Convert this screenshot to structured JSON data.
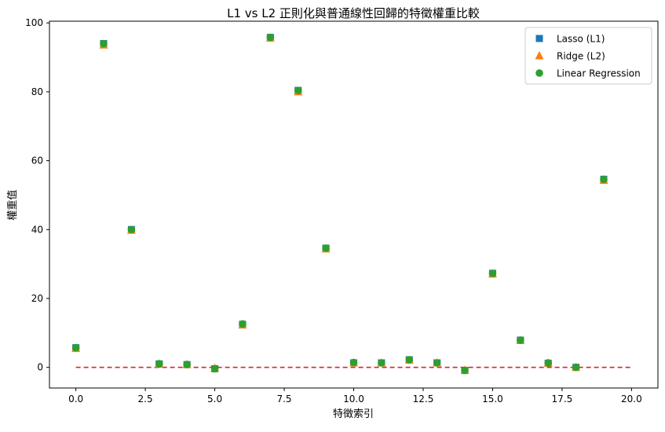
{
  "chart_data": {
    "type": "scatter",
    "title": "L1 vs L2 正則化與普通線性回歸的特徵權重比較",
    "xlabel": "特徵索引",
    "ylabel": "權重值",
    "xlim": [
      -0.95,
      20.95
    ],
    "ylim": [
      -6.0,
      100.5
    ],
    "xticks": [
      0.0,
      2.5,
      5.0,
      7.5,
      10.0,
      12.5,
      15.0,
      17.5,
      20.0
    ],
    "xtick_labels": [
      "0.0",
      "2.5",
      "5.0",
      "7.5",
      "10.0",
      "12.5",
      "15.0",
      "17.5",
      "20.0"
    ],
    "yticks": [
      0,
      20,
      40,
      60,
      80,
      100
    ],
    "ytick_labels": [
      "0",
      "20",
      "40",
      "60",
      "80",
      "100"
    ],
    "grid": false,
    "legend_position": "top-right",
    "x": [
      0,
      1,
      2,
      3,
      4,
      5,
      6,
      7,
      8,
      9,
      10,
      11,
      12,
      13,
      14,
      15,
      16,
      17,
      18,
      19
    ],
    "series": [
      {
        "name": "Lasso (L1)",
        "marker": "square",
        "color": "#1f77b4",
        "values": [
          5.7,
          94.0,
          40.0,
          1.0,
          0.8,
          -0.4,
          12.5,
          95.8,
          80.4,
          34.6,
          1.3,
          1.3,
          2.2,
          1.3,
          -0.9,
          27.3,
          7.9,
          1.2,
          0.0,
          54.6
        ]
      },
      {
        "name": "Ridge (L2)",
        "marker": "triangle",
        "color": "#ff7f0e",
        "values": [
          5.5,
          93.6,
          39.8,
          1.0,
          0.8,
          -0.3,
          12.3,
          95.6,
          80.0,
          34.4,
          1.3,
          1.3,
          2.1,
          1.3,
          -0.8,
          27.1,
          7.8,
          1.2,
          0.0,
          54.3
        ]
      },
      {
        "name": "Linear Regression",
        "marker": "circle",
        "color": "#2ca02c",
        "values": [
          5.7,
          94.0,
          40.0,
          1.0,
          0.8,
          -0.4,
          12.6,
          95.8,
          80.4,
          34.6,
          1.4,
          1.3,
          2.2,
          1.3,
          -0.9,
          27.3,
          7.9,
          1.3,
          0.0,
          54.6
        ]
      }
    ],
    "reference_line": {
      "y": 0,
      "x_range": [
        0,
        20
      ],
      "color": "#d62728",
      "style": "dashed"
    }
  }
}
